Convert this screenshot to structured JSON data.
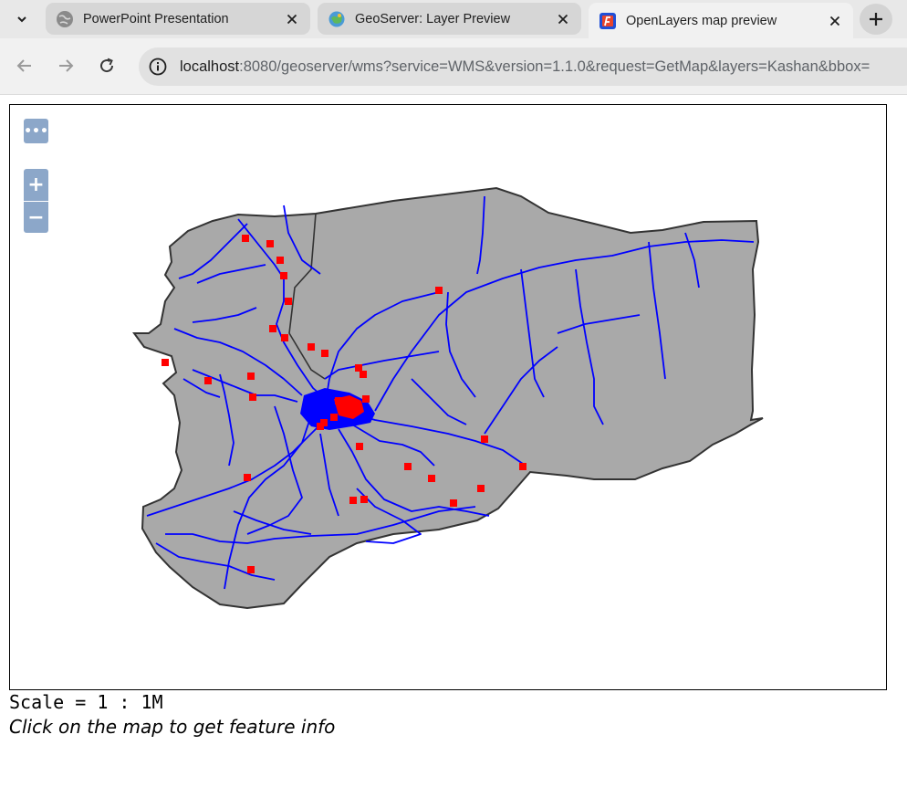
{
  "browser": {
    "tabs": [
      {
        "title": "PowerPoint Presentation",
        "icon": "globe-icon",
        "active": false
      },
      {
        "title": "GeoServer: Layer Preview",
        "icon": "geoserver-icon",
        "active": false
      },
      {
        "title": "OpenLayers map preview",
        "icon": "openlayers-icon",
        "active": true
      }
    ],
    "address": {
      "host": "localhost",
      "rest": ":8080/geoserver/wms?service=WMS&version=1.1.0&request=GetMap&layers=Kashan&bbox="
    }
  },
  "map": {
    "options_label": "•••",
    "zoom_in_label": "+",
    "zoom_out_label": "−",
    "colors": {
      "land": "#a9a9a9",
      "border": "#333333",
      "roads": "#0000ff",
      "points": "#ff0000"
    }
  },
  "footer": {
    "scale": "Scale = 1 : 1M",
    "hint": "Click on the map to get feature info"
  }
}
